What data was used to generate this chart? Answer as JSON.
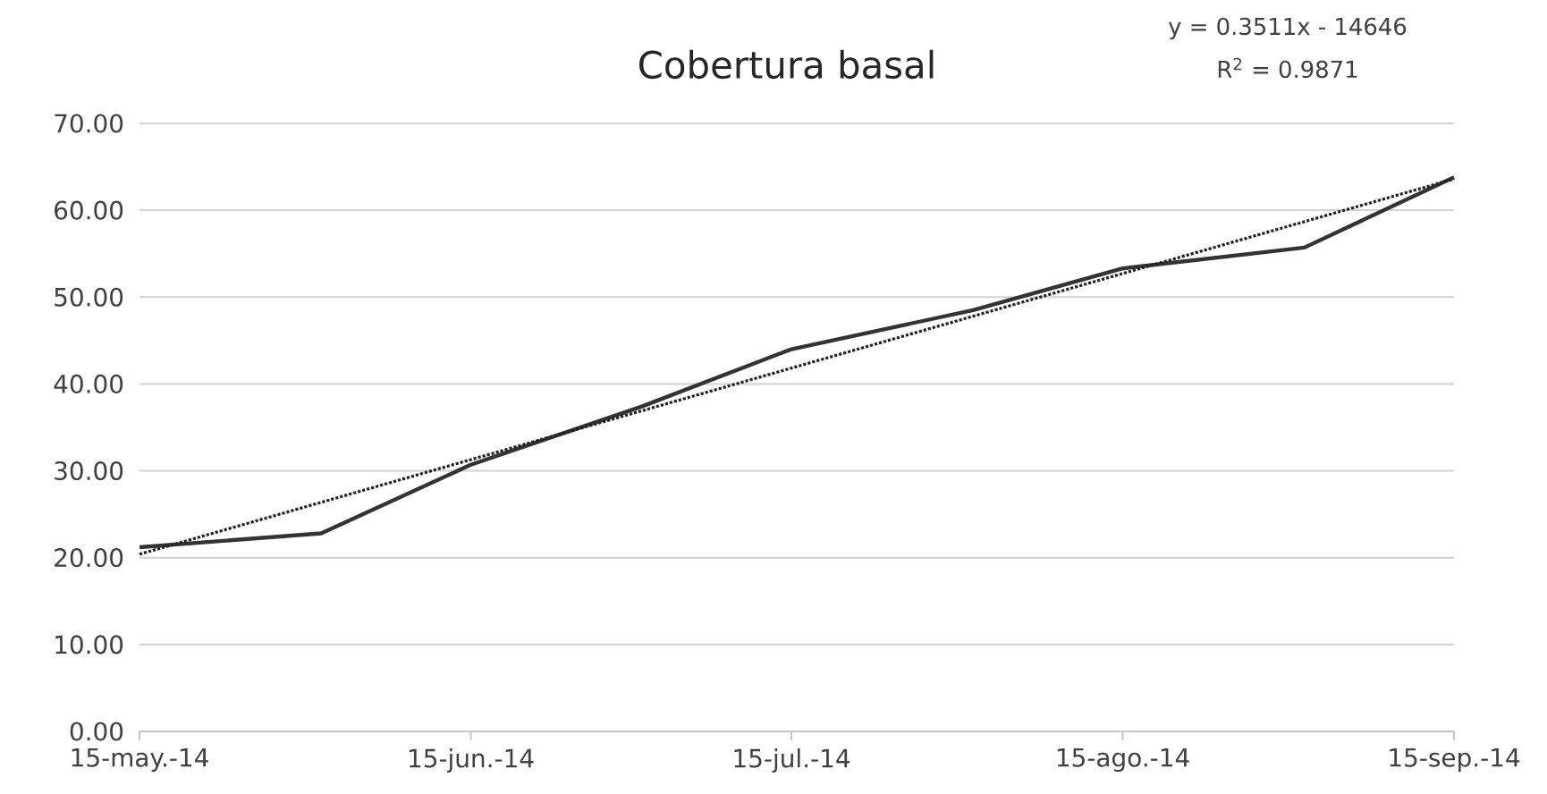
{
  "chart_data": {
    "type": "line",
    "title": "Cobertura basal",
    "annotations": [
      "y = 0.3511x - 14646",
      "R$^{2}$ = 0.9871"
    ],
    "x": [
      "2014-05-15",
      "2014-06-01",
      "2014-06-15",
      "2014-07-01",
      "2014-07-15",
      "2014-08-01",
      "2014-08-15",
      "2014-09-01",
      "2014-09-15"
    ],
    "series": [
      {
        "color": "#333333",
        "line_style": "solid",
        "values": [
          21.2,
          22.8,
          30.7,
          37.4,
          44.0,
          48.5,
          53.3,
          55.7,
          63.8
        ]
      },
      {
        "type": "line",
        "color": "#222222",
        "line_style": "dotted",
        "x": [
          "2014-05-15",
          "2014-09-15"
        ],
        "values": [
          20.4,
          63.6
        ]
      }
    ],
    "xlim": [
      "2014-05-15",
      "2014-09-15"
    ],
    "xticks": [
      {
        "value": "2014-05-15",
        "label": "15-may.-14"
      },
      {
        "value": "2014-06-15",
        "label": "15-jun.-14"
      },
      {
        "value": "2014-07-15",
        "label": "15-jul.-14"
      },
      {
        "value": "2014-08-15",
        "label": "15-ago.-14"
      },
      {
        "value": "2014-09-15",
        "label": "15-sep.-14"
      }
    ],
    "ylim": [
      0,
      70
    ],
    "yticks": [
      {
        "value": 0,
        "label": "0.00"
      },
      {
        "value": 10,
        "label": "10.00"
      },
      {
        "value": 20,
        "label": "20.00"
      },
      {
        "value": 30,
        "label": "30.00"
      },
      {
        "value": 40,
        "label": "40.00"
      },
      {
        "value": 50,
        "label": "50.00"
      },
      {
        "value": 60,
        "label": "60.00"
      },
      {
        "value": 70,
        "label": "70.00"
      }
    ],
    "grid": "y",
    "marker": "none"
  }
}
